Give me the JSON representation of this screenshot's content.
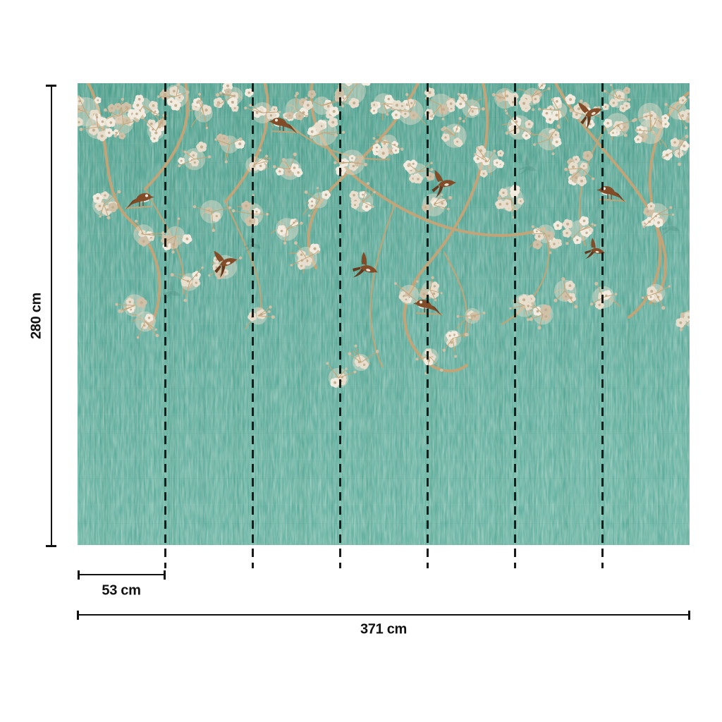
{
  "figure": {
    "type": "wallpaper-mural-dimension-diagram",
    "motif": "cherry blossom branches with birds on teal textured ground"
  },
  "mural": {
    "panel_count": 7
  },
  "dimensions": {
    "height": "280 cm",
    "panel_width": "53 cm",
    "total_width": "371 cm"
  },
  "colors": {
    "page_background": "#ffffff",
    "teal_top": "#5ea795",
    "teal_mid": "#6db2a2",
    "teal_low": "#7abcac",
    "blossom": "#e8decd",
    "blossom_light": "#f2ebdf",
    "blossom_shade": "#cfc0a8",
    "blossom_core": "#c2ae90",
    "branch": "#c2a478",
    "branch_dark": "#a9895f",
    "bird": "#824c28",
    "bird_dark": "#63381d",
    "bird_white": "#f4efe6",
    "ghost": "#4f8f80",
    "seam": "#1a1a1a",
    "dimension": "#111111"
  }
}
